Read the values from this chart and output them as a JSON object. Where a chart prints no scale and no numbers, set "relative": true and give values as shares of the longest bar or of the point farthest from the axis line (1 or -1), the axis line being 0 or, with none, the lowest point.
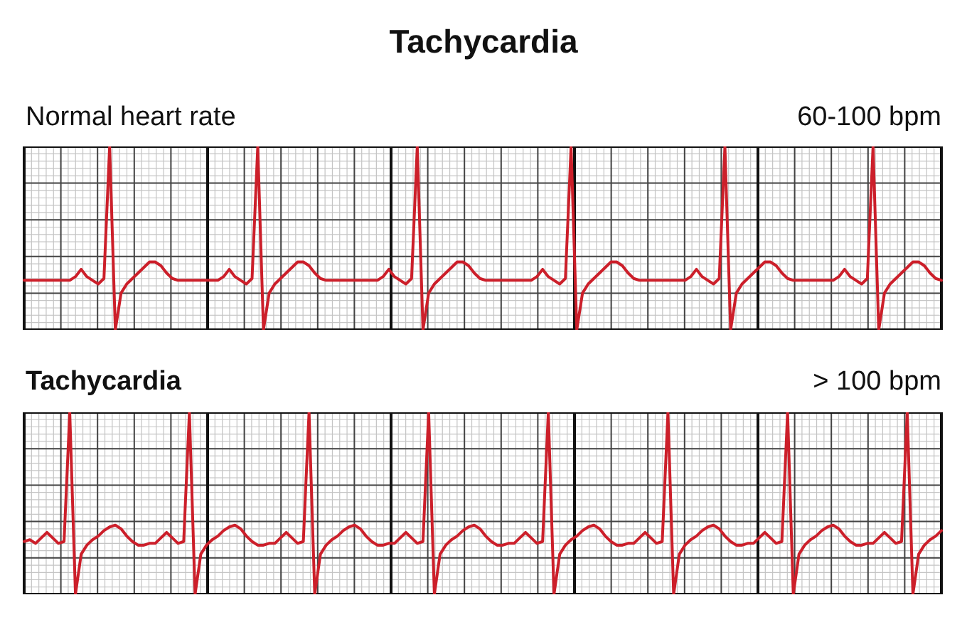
{
  "chart_data": [
    {
      "type": "line",
      "title": "Tachycardia",
      "subtitle": "Normal heart rate",
      "annotations": [
        "60-100 bpm"
      ],
      "relative": true,
      "grid": true,
      "categories": [
        null,
        null,
        null,
        null,
        null,
        null,
        null,
        null,
        null,
        null,
        null,
        null,
        null,
        null,
        null,
        null,
        null,
        null,
        null,
        null,
        null,
        null,
        null,
        null,
        null,
        null,
        null,
        null,
        null,
        null,
        null,
        null,
        null,
        null,
        null,
        null,
        null,
        null,
        null,
        null,
        null,
        null,
        null,
        null,
        null,
        null,
        null,
        null,
        null,
        null,
        null,
        null,
        null,
        null,
        null,
        null,
        null,
        null,
        null,
        null,
        null,
        null,
        null,
        null,
        null,
        null,
        null,
        null,
        null,
        null,
        null,
        null,
        null,
        null,
        null,
        null,
        null,
        null,
        null,
        null,
        null,
        null,
        null,
        null,
        null,
        null,
        null,
        null,
        null,
        null,
        null,
        null,
        null,
        null,
        null,
        null,
        null,
        null,
        null,
        null,
        null,
        null,
        null,
        null,
        null,
        null,
        null,
        null,
        null,
        null,
        null,
        null,
        null,
        null,
        null,
        null,
        null,
        null,
        null,
        null,
        null,
        null,
        null,
        null,
        null,
        null,
        null,
        null,
        null,
        null,
        null,
        null,
        null,
        null,
        null,
        null,
        null,
        null,
        null,
        null,
        null,
        null,
        null,
        null,
        null,
        null,
        null,
        null,
        null,
        null,
        null,
        null,
        null,
        null,
        null,
        null,
        null,
        null,
        null,
        null,
        null,
        null
      ],
      "series": [
        {
          "color": "#cc1f2a",
          "values": [
            0.27,
            0.27,
            0.27,
            0.27,
            0.27,
            0.27,
            0.27,
            0.27,
            0.27,
            0.29,
            0.33,
            0.29,
            0.27,
            0.25,
            0.28,
            1,
            0,
            0.2,
            0.25,
            0.28,
            0.31,
            0.34,
            0.37,
            0.37,
            0.35,
            0.31,
            0.28,
            0.27,
            0.27,
            0.27,
            0.27,
            0.27,
            0.27,
            0.27,
            0.27,
            0.29,
            0.33,
            0.29,
            0.27,
            0.25,
            0.28,
            1,
            0,
            0.2,
            0.25,
            0.28,
            0.31,
            0.34,
            0.37,
            0.37,
            0.35,
            0.31,
            0.28,
            0.27,
            0.27,
            0.27,
            0.27,
            0.27,
            0.27,
            0.27,
            0.27,
            0.27,
            0.27,
            0.29,
            0.33,
            0.29,
            0.27,
            0.25,
            0.28,
            1,
            0,
            0.2,
            0.25,
            0.28,
            0.31,
            0.34,
            0.37,
            0.37,
            0.35,
            0.31,
            0.28,
            0.27,
            0.27,
            0.27,
            0.27,
            0.27,
            0.27,
            0.27,
            0.27,
            0.27,
            0.29,
            0.33,
            0.29,
            0.27,
            0.25,
            0.28,
            1,
            0,
            0.2,
            0.25,
            0.28,
            0.31,
            0.34,
            0.37,
            0.37,
            0.35,
            0.31,
            0.28,
            0.27,
            0.27,
            0.27,
            0.27,
            0.27,
            0.27,
            0.27,
            0.27,
            0.27,
            0.29,
            0.33,
            0.29,
            0.27,
            0.25,
            0.28,
            1,
            0,
            0.2,
            0.25,
            0.28,
            0.31,
            0.34,
            0.37,
            0.37,
            0.35,
            0.31,
            0.28,
            0.27,
            0.27,
            0.27,
            0.27,
            0.27,
            0.27,
            0.27,
            0.27,
            0.29,
            0.33,
            0.29,
            0.27,
            0.25,
            0.28,
            1,
            0,
            0.2,
            0.25,
            0.28,
            0.31,
            0.34,
            0.37,
            0.37,
            0.35,
            0.31,
            0.28,
            0.27
          ]
        }
      ]
    },
    {
      "type": "line",
      "title": "Tachycardia",
      "annotations": [
        "> 100 bpm"
      ],
      "relative": true,
      "grid": true,
      "categories": [
        null,
        null,
        null,
        null,
        null,
        null,
        null,
        null,
        null,
        null,
        null,
        null,
        null,
        null,
        null,
        null,
        null,
        null,
        null,
        null,
        null,
        null,
        null,
        null,
        null,
        null,
        null,
        null,
        null,
        null,
        null,
        null,
        null,
        null,
        null,
        null,
        null,
        null,
        null,
        null,
        null,
        null,
        null,
        null,
        null,
        null,
        null,
        null,
        null,
        null,
        null,
        null,
        null,
        null,
        null,
        null,
        null,
        null,
        null,
        null,
        null,
        null,
        null,
        null,
        null,
        null,
        null,
        null,
        null,
        null,
        null,
        null,
        null,
        null,
        null,
        null,
        null,
        null,
        null,
        null,
        null,
        null,
        null,
        null,
        null,
        null,
        null,
        null,
        null,
        null,
        null,
        null,
        null,
        null,
        null,
        null,
        null,
        null,
        null,
        null,
        null,
        null,
        null,
        null,
        null,
        null,
        null,
        null,
        null,
        null,
        null,
        null,
        null,
        null,
        null,
        null,
        null,
        null,
        null,
        null,
        null,
        null,
        null,
        null,
        null,
        null,
        null,
        null,
        null,
        null,
        null,
        null,
        null,
        null,
        null,
        null,
        null,
        null,
        null,
        null,
        null,
        null,
        null,
        null,
        null,
        null,
        null,
        null,
        null,
        null,
        null,
        null,
        null,
        null,
        null,
        null,
        null,
        null,
        null,
        null,
        null,
        null
      ],
      "series": [
        {
          "color": "#cc1f2a",
          "values": [
            0.29,
            0.3,
            0.28,
            0.31,
            0.34,
            0.31,
            0.28,
            0.29,
            1,
            0,
            0.22,
            0.27,
            0.3,
            0.32,
            0.35,
            0.37,
            0.38,
            0.36,
            0.32,
            0.29,
            0.27,
            0.27,
            0.28,
            0.28,
            0.31,
            0.34,
            0.31,
            0.28,
            0.29,
            1,
            0,
            0.22,
            0.27,
            0.3,
            0.32,
            0.35,
            0.37,
            0.38,
            0.36,
            0.32,
            0.29,
            0.27,
            0.27,
            0.28,
            0.28,
            0.31,
            0.34,
            0.31,
            0.28,
            0.29,
            1,
            0,
            0.22,
            0.27,
            0.3,
            0.32,
            0.35,
            0.37,
            0.38,
            0.36,
            0.32,
            0.29,
            0.27,
            0.27,
            0.28,
            0.28,
            0.31,
            0.34,
            0.31,
            0.28,
            0.29,
            1,
            0,
            0.22,
            0.27,
            0.3,
            0.32,
            0.35,
            0.37,
            0.38,
            0.36,
            0.32,
            0.29,
            0.27,
            0.27,
            0.28,
            0.28,
            0.31,
            0.34,
            0.31,
            0.28,
            0.29,
            1,
            0,
            0.22,
            0.27,
            0.3,
            0.32,
            0.35,
            0.37,
            0.38,
            0.36,
            0.32,
            0.29,
            0.27,
            0.27,
            0.28,
            0.28,
            0.31,
            0.34,
            0.31,
            0.28,
            0.29,
            1,
            0,
            0.22,
            0.27,
            0.3,
            0.32,
            0.35,
            0.37,
            0.38,
            0.36,
            0.32,
            0.29,
            0.27,
            0.27,
            0.28,
            0.28,
            0.31,
            0.34,
            0.31,
            0.28,
            0.29,
            1,
            0,
            0.22,
            0.27,
            0.3,
            0.32,
            0.35,
            0.37,
            0.38,
            0.36,
            0.32,
            0.29,
            0.27,
            0.27,
            0.28,
            0.28,
            0.31,
            0.34,
            0.31,
            0.28,
            0.29,
            1,
            0,
            0.22,
            0.27,
            0.3,
            0.32,
            0.35
          ]
        }
      ]
    }
  ]
}
